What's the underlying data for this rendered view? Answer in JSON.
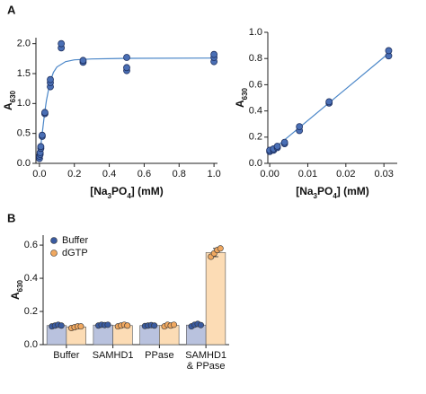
{
  "panels": [
    "A",
    "B"
  ],
  "chart_data": [
    {
      "type": "scatter",
      "y_label": [
        "A",
        "630"
      ],
      "x_label": [
        "[Na",
        "3",
        "PO",
        "4",
        "] (mM)"
      ],
      "xlim": [
        -0.02,
        1.02
      ],
      "ylim": [
        0,
        2.1
      ],
      "xticks": [
        {
          "value": 0,
          "label": "0.0"
        },
        0.2,
        0.4,
        0.6,
        0.8,
        {
          "value": 1,
          "label": "1.0"
        }
      ],
      "yticks": [
        {
          "value": 0,
          "label": "0.0"
        },
        0.5,
        {
          "value": 1,
          "label": "1.0"
        },
        1.5,
        {
          "value": 2,
          "label": "2.0"
        }
      ],
      "series": [
        {
          "color": "#4a6fb5",
          "x": [
            0,
            0,
            0.0039,
            0.0039,
            0.0078,
            0.0078,
            0.0156,
            0.0156,
            0.031,
            0.031,
            0.0625,
            0.0625,
            0.0625,
            0.125,
            0.125,
            0.25,
            0.25,
            0.5,
            0.5,
            0.5,
            1,
            1,
            1
          ],
          "values": [
            0.08,
            0.12,
            0.15,
            0.18,
            0.25,
            0.28,
            0.45,
            0.47,
            0.83,
            0.85,
            1.28,
            1.35,
            1.4,
            1.93,
            2.0,
            1.69,
            1.72,
            1.55,
            1.6,
            1.77,
            1.7,
            1.77,
            1.82
          ]
        }
      ],
      "fit": {
        "color": "#4a86c8",
        "x": [
          0,
          0.01,
          0.02,
          0.03,
          0.04,
          0.06,
          0.08,
          0.1,
          0.15,
          0.2,
          0.3,
          0.5,
          1.0
        ],
        "values": [
          0.08,
          0.35,
          0.6,
          0.85,
          1.05,
          1.35,
          1.52,
          1.61,
          1.7,
          1.73,
          1.745,
          1.755,
          1.76
        ]
      }
    },
    {
      "type": "scatter",
      "y_label": [
        "A",
        "630"
      ],
      "x_label": [
        "[Na",
        "3",
        "PO",
        "4",
        "] (mM)"
      ],
      "xlim": [
        -0.0005,
        0.0335
      ],
      "ylim": [
        0,
        1.0
      ],
      "xticks": [
        {
          "value": 0,
          "label": "0.00"
        },
        {
          "value": 0.01,
          "label": "0.01"
        },
        {
          "value": 0.02,
          "label": "0.02"
        },
        {
          "value": 0.03,
          "label": "0.03"
        }
      ],
      "yticks": [
        {
          "value": 0,
          "label": "0.0"
        },
        0.2,
        0.4,
        0.6,
        0.8,
        {
          "value": 1,
          "label": "1.0"
        }
      ],
      "series": [
        {
          "color": "#4a6fb5",
          "x": [
            0,
            0,
            0.001,
            0.001,
            0.002,
            0.002,
            0.0039,
            0.0039,
            0.0078,
            0.0078,
            0.0156,
            0.0156,
            0.03125,
            0.03125
          ],
          "values": [
            0.09,
            0.1,
            0.1,
            0.11,
            0.12,
            0.13,
            0.15,
            0.16,
            0.25,
            0.28,
            0.46,
            0.47,
            0.82,
            0.86
          ]
        }
      ],
      "fit": {
        "color": "#4a86c8",
        "x": [
          0,
          0.03125
        ],
        "values": [
          0.085,
          0.84
        ]
      }
    },
    {
      "type": "bar",
      "y_label": [
        "A",
        "630"
      ],
      "categories": [
        [
          "Buffer"
        ],
        [
          "SAMHD1"
        ],
        [
          "PPase"
        ],
        [
          "SAMHD1",
          "& PPase"
        ]
      ],
      "ylim": [
        0,
        0.66
      ],
      "yticks": [
        {
          "value": 0,
          "label": "0.0"
        },
        0.2,
        0.4,
        0.6
      ],
      "legend": "top-left",
      "series": [
        {
          "name": "Buffer",
          "color": "#3a5ba0",
          "bar_color": "#b9c2de",
          "values": [
            0.115,
            0.118,
            0.115,
            0.118
          ],
          "errors": [
            0.005,
            0.003,
            0.003,
            0.008
          ],
          "points": [
            [
              0.11,
              0.115,
              0.12,
              0.115
            ],
            [
              0.115,
              0.12,
              0.118,
              0.12
            ],
            [
              0.112,
              0.115,
              0.118,
              0.115
            ],
            [
              0.11,
              0.12,
              0.125,
              0.118
            ]
          ]
        },
        {
          "name": "dGTP",
          "color": "#f0a860",
          "bar_color": "#fcdcb5",
          "values": [
            0.107,
            0.115,
            0.116,
            0.555
          ],
          "errors": [
            0.006,
            0.006,
            0.008,
            0.025
          ],
          "points": [
            [
              0.1,
              0.105,
              0.11,
              0.11
            ],
            [
              0.11,
              0.115,
              0.12,
              0.115
            ],
            [
              0.11,
              0.12,
              0.115,
              0.12
            ],
            [
              0.53,
              0.55,
              0.57,
              0.58
            ]
          ]
        }
      ]
    }
  ]
}
